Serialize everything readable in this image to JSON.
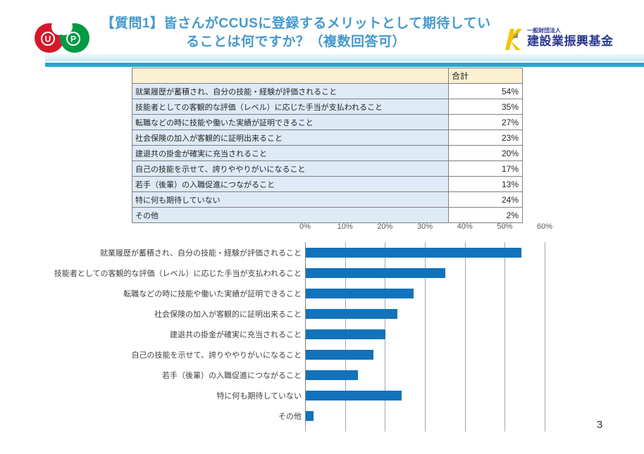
{
  "header": {
    "title_line1": "【質問1】皆さんがCCUSに登録するメリットとして期待してい",
    "title_line2": "ることは何ですか？（複数回答可）",
    "org_name_small": "一般財団法人",
    "org_name_large": "建設業振興基金",
    "up_logo_letters": [
      "U",
      "P"
    ]
  },
  "table": {
    "total_header": "合計",
    "rows": [
      {
        "label": "就業履歴が蓄積され、自分の技能・経験が評価されること",
        "value": "54%"
      },
      {
        "label": "技能者としての客観的な評価（レベル）に応じた手当が支払われること",
        "value": "35%"
      },
      {
        "label": "転職などの時に技能や働いた実績が証明できること",
        "value": "27%"
      },
      {
        "label": "社会保険の加入が客観的に証明出来ること",
        "value": "23%"
      },
      {
        "label": "建退共の掛金が確実に充当されること",
        "value": "20%"
      },
      {
        "label": "自己の技能を示せて、誇りややりがいになること",
        "value": "17%"
      },
      {
        "label": "若手（後輩）の入職促進につながること",
        "value": "13%"
      },
      {
        "label": "特に何も期待していない",
        "value": "24%"
      },
      {
        "label": "その他",
        "value": "2%"
      }
    ]
  },
  "chart_data": {
    "type": "bar",
    "orientation": "horizontal",
    "categories": [
      "就業履歴が蓄積され、自分の技能・経験が評価されること",
      "技能者としての客観的な評価（レベル）に応じた手当が支払われること",
      "転職などの時に技能や働いた実績が証明できること",
      "社会保険の加入が客観的に証明出来ること",
      "建退共の掛金が確実に充当されること",
      "自己の技能を示せて、誇りややりがいになること",
      "若手（後輩）の入職促進につながること",
      "特に何も期待していない",
      "その他"
    ],
    "values": [
      54,
      35,
      27,
      23,
      20,
      17,
      13,
      24,
      2
    ],
    "unit": "%",
    "xlim": [
      0,
      60
    ],
    "x_ticks": [
      "0%",
      "10%",
      "20%",
      "30%",
      "40%",
      "50%",
      "60%"
    ],
    "x_tick_values": [
      0,
      10,
      20,
      30,
      40,
      50,
      60
    ],
    "grid": true,
    "legend": false,
    "bar_color": "#1173BC"
  },
  "page_number": "3",
  "colors": {
    "title_blue": "#4399CE",
    "band_cyan": "#25A7CF",
    "table_header_bg": "#FCF0D2",
    "table_label_bg": "#DEEAF6",
    "bar_blue": "#1173BC",
    "gridline_gray": "#A6A6A6",
    "org_navy": "#2B3990",
    "logo_red": "#D7182A",
    "logo_green": "#009944",
    "kmark_yellow": "#F2C500"
  }
}
